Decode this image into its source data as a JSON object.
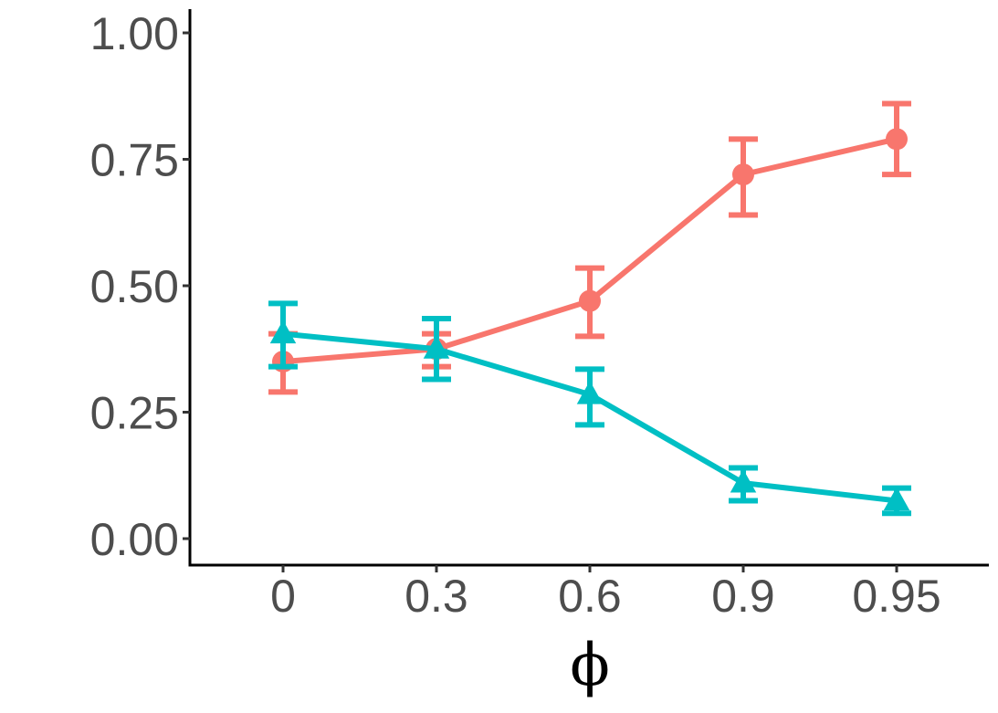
{
  "chart_data": {
    "type": "line",
    "title": "",
    "xlabel": "ϕ",
    "ylabel": "",
    "categories": [
      "0",
      "0.3",
      "0.6",
      "0.9",
      "0.95"
    ],
    "ylim": [
      -0.05,
      1.05
    ],
    "yticks": [
      "0.00",
      "0.25",
      "0.50",
      "0.75",
      "1.00"
    ],
    "ytick_values": [
      0,
      0.25,
      0.5,
      0.75,
      1.0
    ],
    "grid": false,
    "legend": "none",
    "series": [
      {
        "name": "series-red",
        "color": "#F8766D",
        "marker": "circle",
        "values": [
          0.35,
          0.375,
          0.47,
          0.72,
          0.79
        ],
        "error_low": [
          0.29,
          0.34,
          0.4,
          0.64,
          0.72
        ],
        "error_high": [
          0.405,
          0.405,
          0.535,
          0.79,
          0.86
        ]
      },
      {
        "name": "series-teal",
        "color": "#00BFC4",
        "marker": "triangle",
        "values": [
          0.405,
          0.375,
          0.285,
          0.11,
          0.075
        ],
        "error_low": [
          0.34,
          0.315,
          0.225,
          0.075,
          0.05
        ],
        "error_high": [
          0.465,
          0.435,
          0.335,
          0.14,
          0.1
        ]
      }
    ]
  }
}
